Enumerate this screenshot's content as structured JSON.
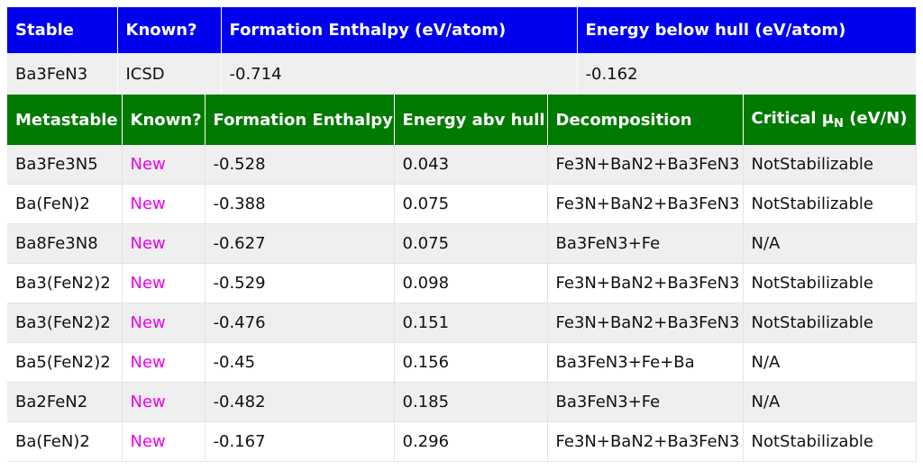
{
  "stable": {
    "headers": [
      "Stable",
      "Known?",
      "Formation Enthalpy (eV/atom)",
      "Energy below hull (eV/atom)"
    ],
    "row": [
      "Ba3FeN3",
      "ICSD",
      "-0.714",
      "-0.162"
    ]
  },
  "metastable": {
    "headers": [
      "Metastable",
      "Known?",
      "Formation Enthalpy",
      "Energy abv hull",
      "Decomposition"
    ],
    "critical_header": {
      "main": "Critical μ",
      "sub": "N",
      "unit": " (eV/N)"
    },
    "rows": [
      [
        "Ba3Fe3N5",
        "New",
        "-0.528",
        "0.043",
        "Fe3N+BaN2+Ba3FeN3",
        "NotStabilizable"
      ],
      [
        "Ba(FeN)2",
        "New",
        "-0.388",
        "0.075",
        "Fe3N+BaN2+Ba3FeN3",
        "NotStabilizable"
      ],
      [
        "Ba8Fe3N8",
        "New",
        "-0.627",
        "0.075",
        "Ba3FeN3+Fe",
        "N/A"
      ],
      [
        "Ba3(FeN2)2",
        "New",
        "-0.529",
        "0.098",
        "Fe3N+BaN2+Ba3FeN3",
        "NotStabilizable"
      ],
      [
        "Ba3(FeN2)2",
        "New",
        "-0.476",
        "0.151",
        "Fe3N+BaN2+Ba3FeN3",
        "NotStabilizable"
      ],
      [
        "Ba5(FeN2)2",
        "New",
        "-0.45",
        "0.156",
        "Ba3FeN3+Fe+Ba",
        "N/A"
      ],
      [
        "Ba2FeN2",
        "New",
        "-0.482",
        "0.185",
        "Ba3FeN3+Fe",
        "N/A"
      ],
      [
        "Ba(FeN)2",
        "New",
        "-0.167",
        "0.296",
        "Fe3N+BaN2+Ba3FeN3",
        "NotStabilizable"
      ]
    ]
  },
  "colors": {
    "stable_header": "#0000ee",
    "metastable_header": "#007a00",
    "new_label": "#ee00ee",
    "row_alt": "#efefef"
  }
}
